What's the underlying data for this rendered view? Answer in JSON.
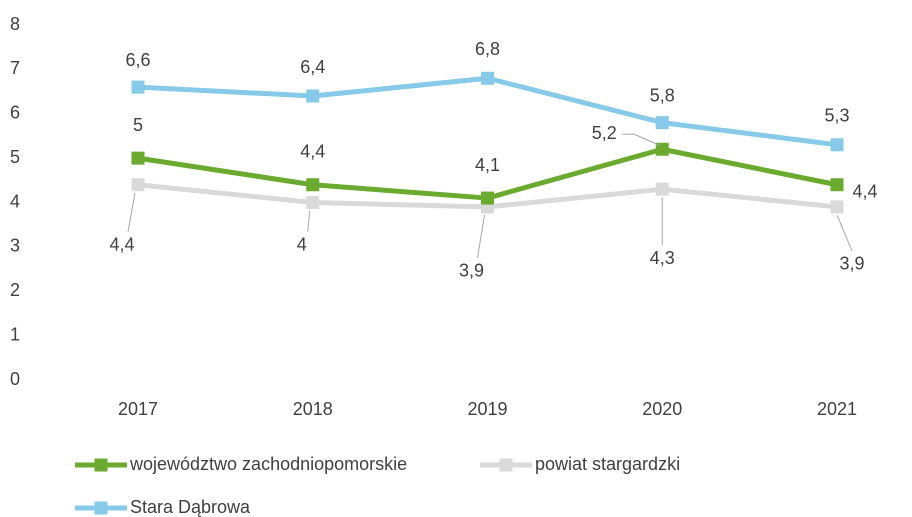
{
  "chart_data": {
    "type": "line",
    "categories": [
      "2017",
      "2018",
      "2019",
      "2020",
      "2021"
    ],
    "ylim": [
      0,
      8
    ],
    "yticks": [
      0,
      1,
      2,
      3,
      4,
      5,
      6,
      7,
      8
    ],
    "grid": false,
    "series": [
      {
        "name": "województwo zachodniopomorskie",
        "color": "#6aaa2f",
        "values": [
          5,
          4.4,
          4.1,
          5.2,
          4.4
        ],
        "value_labels": [
          "5",
          "4,4",
          "4,1",
          "5,2",
          "4,4"
        ]
      },
      {
        "name": "powiat stargardzki",
        "color": "#d9d9d9",
        "values": [
          4.4,
          4,
          3.9,
          4.3,
          3.9
        ],
        "value_labels": [
          "4,4",
          "4",
          "3,9",
          "4,3",
          "3,9"
        ]
      },
      {
        "name": "Stara Dąbrowa",
        "color": "#87c9e8",
        "values": [
          6.6,
          6.4,
          6.8,
          5.8,
          5.3
        ],
        "value_labels": [
          "6,6",
          "6,4",
          "6,8",
          "5,8",
          "5,3"
        ]
      }
    ]
  }
}
